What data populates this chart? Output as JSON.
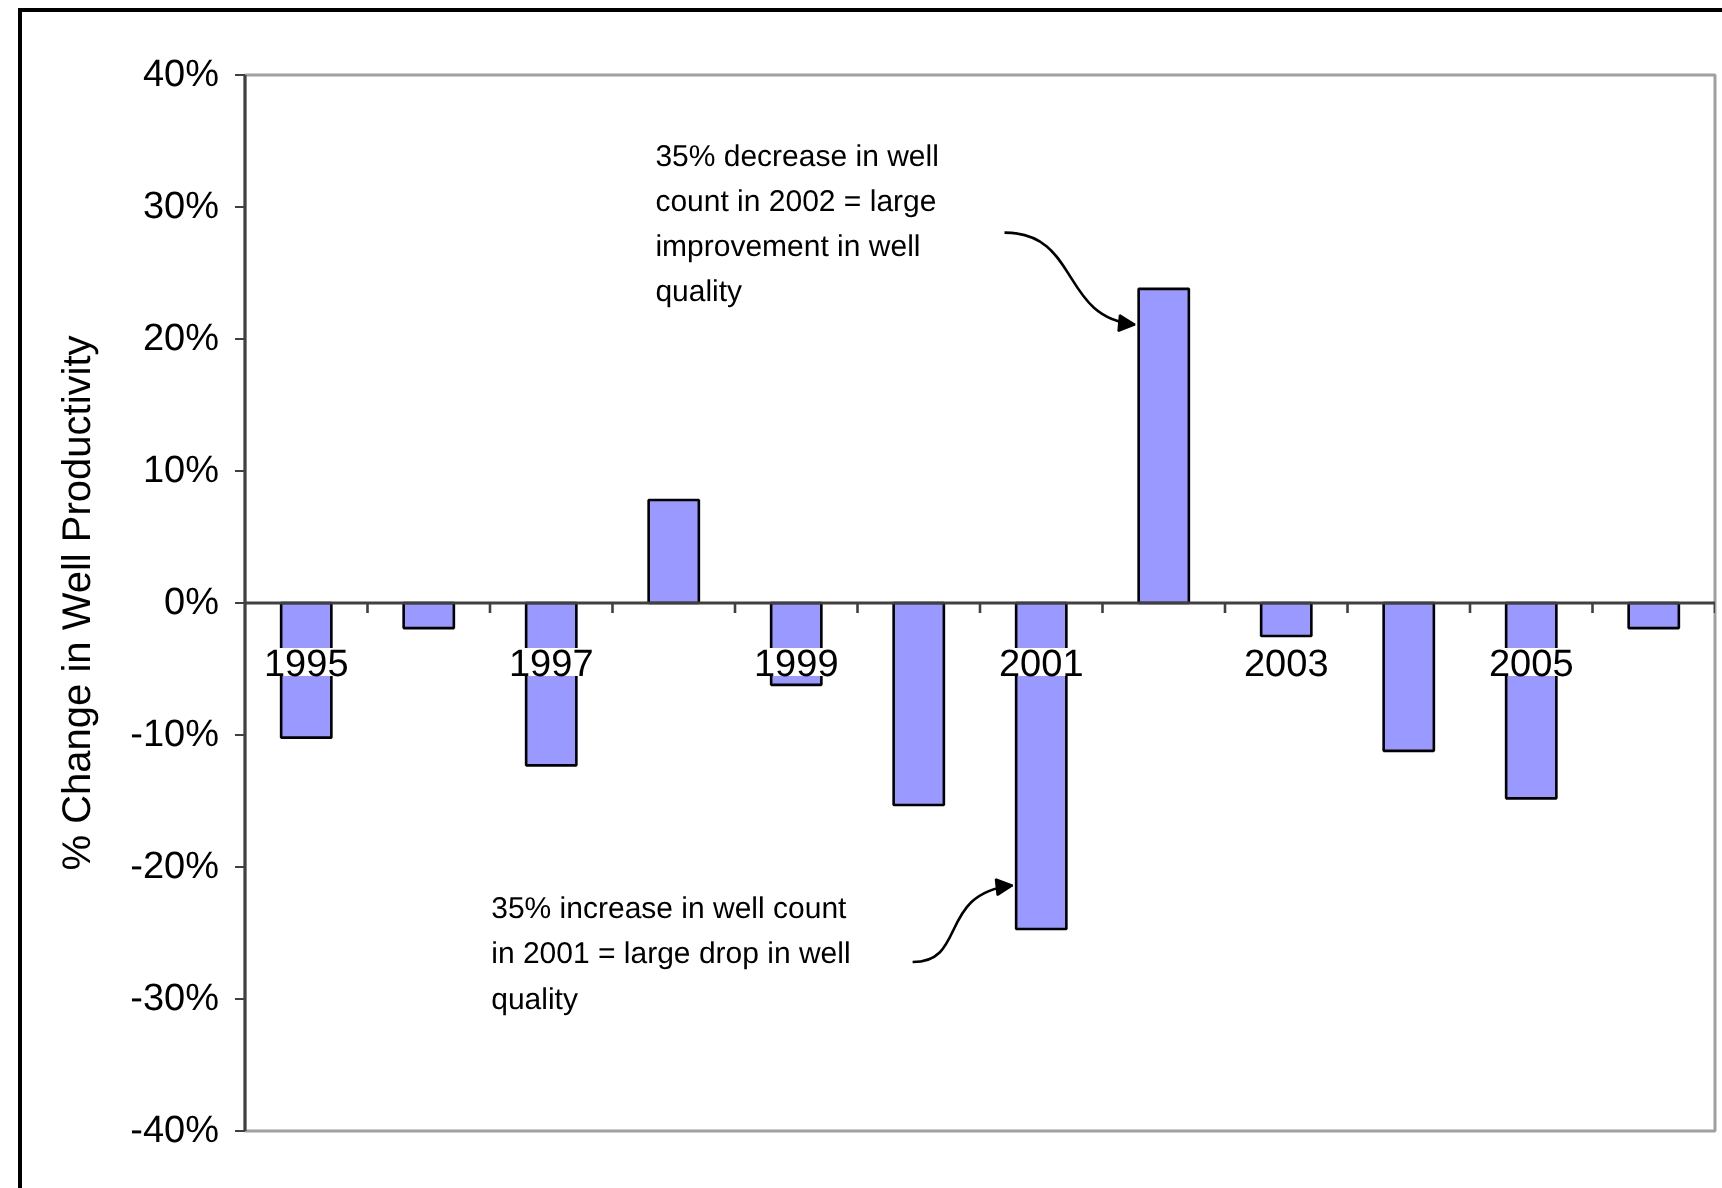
{
  "chart_data": {
    "type": "bar",
    "categories": [
      "1995",
      null,
      "1997",
      null,
      "1999",
      null,
      "2001",
      null,
      "2003",
      null,
      "2005",
      null
    ],
    "values": [
      -10.2,
      -1.9,
      -12.3,
      7.8,
      -6.2,
      -15.3,
      -24.7,
      23.8,
      -2.5,
      -11.2,
      -14.8,
      -1.9
    ],
    "color": "#9999ff",
    "ylabel": "% Change in Well Productivity",
    "ylim": [
      -40,
      40
    ],
    "yticks": [
      {
        "value": -40,
        "label": "-40%"
      },
      {
        "value": -30,
        "label": "-30%"
      },
      {
        "value": -20,
        "label": "-20%"
      },
      {
        "value": -10,
        "label": "-10%"
      },
      {
        "value": 0,
        "label": "0%"
      },
      {
        "value": 10,
        "label": "10%"
      },
      {
        "value": 20,
        "label": "20%"
      },
      {
        "value": 30,
        "label": "30%"
      },
      {
        "value": 40,
        "label": "40%"
      }
    ],
    "annotations": [
      "35% decrease in well\ncount in 2002 = large\nimprovement in well\nquality",
      "35% increase in well count\nin 2001 = large drop in well\nquality"
    ]
  }
}
